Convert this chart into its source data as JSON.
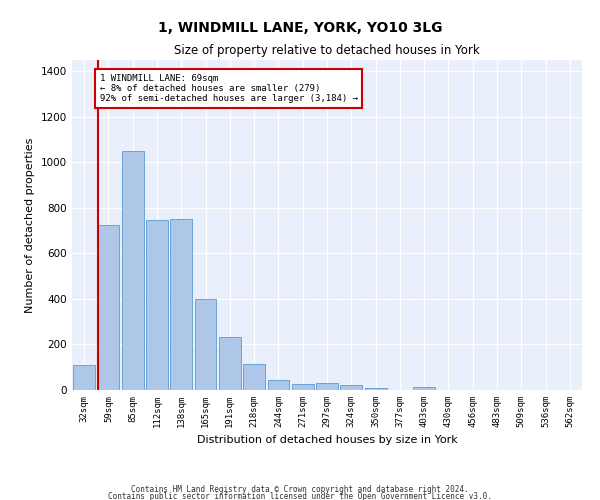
{
  "title": "1, WINDMILL LANE, YORK, YO10 3LG",
  "subtitle": "Size of property relative to detached houses in York",
  "xlabel": "Distribution of detached houses by size in York",
  "ylabel": "Number of detached properties",
  "bar_color": "#aec6e8",
  "bar_edge_color": "#5b9bd5",
  "background_color": "#eaf0fb",
  "grid_color": "#ffffff",
  "annotation_line_color": "#cc0000",
  "annotation_box_color": "#cc0000",
  "footer_line1": "Contains HM Land Registry data © Crown copyright and database right 2024.",
  "footer_line2": "Contains public sector information licensed under the Open Government Licence v3.0.",
  "annotation_text_line1": "1 WINDMILL LANE: 69sqm",
  "annotation_text_line2": "← 8% of detached houses are smaller (279)",
  "annotation_text_line3": "92% of semi-detached houses are larger (3,184) →",
  "categories": [
    "32sqm",
    "59sqm",
    "85sqm",
    "112sqm",
    "138sqm",
    "165sqm",
    "191sqm",
    "218sqm",
    "244sqm",
    "271sqm",
    "297sqm",
    "324sqm",
    "350sqm",
    "377sqm",
    "403sqm",
    "430sqm",
    "456sqm",
    "483sqm",
    "509sqm",
    "536sqm",
    "562sqm"
  ],
  "values": [
    110,
    725,
    1050,
    745,
    750,
    400,
    235,
    115,
    45,
    28,
    30,
    22,
    10,
    0,
    15,
    0,
    0,
    0,
    0,
    0,
    0
  ],
  "ylim": [
    0,
    1450
  ],
  "yticks": [
    0,
    200,
    400,
    600,
    800,
    1000,
    1200,
    1400
  ],
  "bar_width": 0.9
}
